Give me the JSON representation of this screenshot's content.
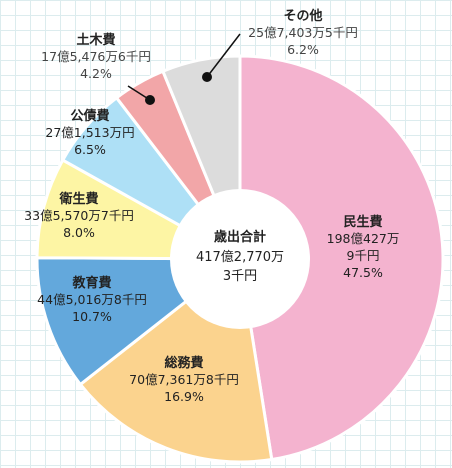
{
  "chart_data": {
    "type": "pie",
    "style": "donut",
    "start_angle_deg": 0,
    "direction": "clockwise",
    "center_label": {
      "title": "歳出合計",
      "lines": [
        "417億2,770万",
        "3千円"
      ]
    },
    "slices": [
      {
        "name": "民生費",
        "amount_lines": [
          "198億427万",
          "9千円"
        ],
        "percent_label": "47.5%",
        "value": 47.5,
        "color": "#f4b3cf"
      },
      {
        "name": "総務費",
        "amount_lines": [
          "70億7,361万8千円"
        ],
        "percent_label": "16.9%",
        "value": 16.9,
        "color": "#fbd38e"
      },
      {
        "name": "教育費",
        "amount_lines": [
          "44億5,016万8千円"
        ],
        "percent_label": "10.7%",
        "value": 10.7,
        "color": "#63a8dc"
      },
      {
        "name": "衛生費",
        "amount_lines": [
          "33億5,570万7千円"
        ],
        "percent_label": "8.0%",
        "value": 8.0,
        "color": "#fdf5a4"
      },
      {
        "name": "公債費",
        "amount_lines": [
          "27億1,513万円"
        ],
        "percent_label": "6.5%",
        "value": 6.5,
        "color": "#aee0f6"
      },
      {
        "name": "土木費",
        "amount_lines": [
          "17億5,476万6千円"
        ],
        "percent_label": "4.2%",
        "value": 4.2,
        "color": "#f2a6a8"
      },
      {
        "name": "その他",
        "amount_lines": [
          "25億7,403万5千円"
        ],
        "percent_label": "6.2%",
        "value": 6.2,
        "color": "#dcdcdc"
      }
    ]
  }
}
